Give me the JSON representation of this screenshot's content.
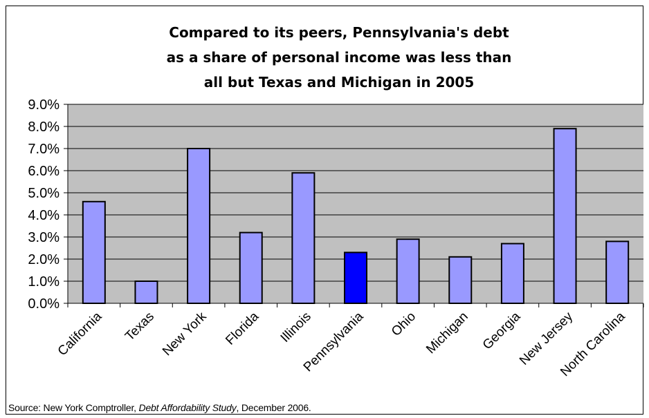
{
  "chart_data": {
    "type": "bar",
    "title_lines": [
      "Compared to its peers, Pennsylvania's debt",
      "as a share of personal income was less than",
      "all but Texas and Michigan in 2005"
    ],
    "categories": [
      "California",
      "Texas",
      "New York",
      "Florida",
      "Illinois",
      "Pennsylvania",
      "Ohio",
      "Michigan",
      "Georgia",
      "New Jersey",
      "North Carolina"
    ],
    "values": [
      4.6,
      1.0,
      7.0,
      3.2,
      5.9,
      2.3,
      2.9,
      2.1,
      2.7,
      7.9,
      2.8
    ],
    "y_ticks": [
      "0.0%",
      "1.0%",
      "2.0%",
      "3.0%",
      "4.0%",
      "5.0%",
      "6.0%",
      "7.0%",
      "8.0%",
      "9.0%"
    ],
    "ylim": [
      0,
      9
    ],
    "xlabel": "",
    "ylabel": "",
    "grid": true,
    "legend": false,
    "colors": {
      "bar": "#9999ff",
      "highlight_bar": "#0000ff",
      "highlight_category": "Pennsylvania",
      "plot_background": "#c0c0c0",
      "gridline": "#000000"
    }
  },
  "source": {
    "prefix": "Source: New York Comptroller, ",
    "title": "Debt Affordability Study",
    "suffix": ", December 2006."
  }
}
